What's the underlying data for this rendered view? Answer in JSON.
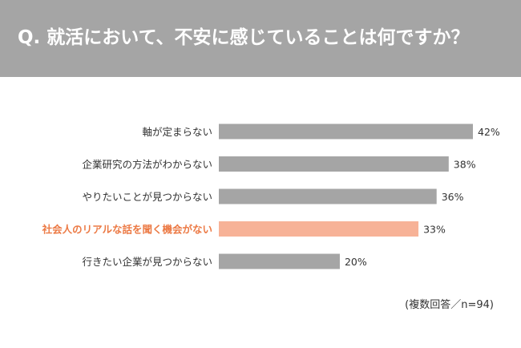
{
  "header": {
    "title": "Q. 就活において、不安に感じていることは何ですか？"
  },
  "footnote": "(複数回答／n=94)",
  "colors": {
    "bar": "#a5a5a5",
    "highlight_bar": "#f7b297",
    "highlight_text": "#ec7a45",
    "text": "#333333"
  },
  "chart_data": {
    "type": "bar",
    "orientation": "horizontal",
    "categories": [
      "軸が定まらない",
      "企業研究の方法がわからない",
      "やりたいことが見つからない",
      "社会人のリアルな話を聞く機会がない",
      "行きたい企業が見つからない"
    ],
    "values": [
      42,
      38,
      36,
      33,
      20
    ],
    "value_labels": [
      "42%",
      "38%",
      "36%",
      "33%",
      "20%"
    ],
    "highlight_index": 3,
    "xlim": [
      0,
      50
    ],
    "grid": false,
    "legend": "none"
  }
}
